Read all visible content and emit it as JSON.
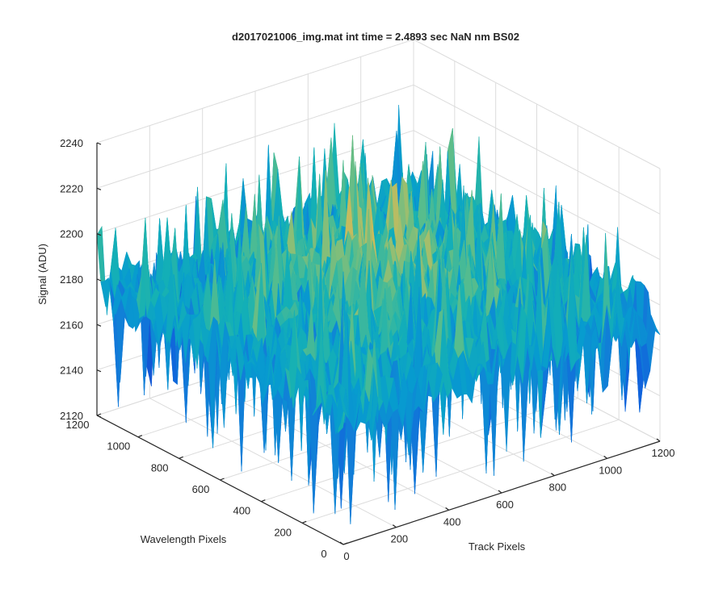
{
  "chart_data": {
    "type": "surface3d",
    "title": "d2017021006_img.mat int time = 2.4893 sec  NaN nm BS02",
    "xlabel": "Track Pixels",
    "ylabel": "Wavelength Pixels",
    "zlabel": "Signal (ADU)",
    "xlim": [
      0,
      1200
    ],
    "ylim": [
      0,
      1200
    ],
    "zlim": [
      2120,
      2240
    ],
    "xticks": [
      "0",
      "200",
      "400",
      "600",
      "800",
      "1000",
      "1200"
    ],
    "yticks": [
      "0",
      "200",
      "400",
      "600",
      "800",
      "1000",
      "1200"
    ],
    "zticks": [
      "2120",
      "2140",
      "2160",
      "2180",
      "2200",
      "2220",
      "2240"
    ],
    "grid": true,
    "colormap": "parula",
    "surface": {
      "baseline": 2175,
      "center_peak": 2195,
      "noise_amplitude": 28,
      "min_value": 2125,
      "max_value": 2235
    }
  }
}
